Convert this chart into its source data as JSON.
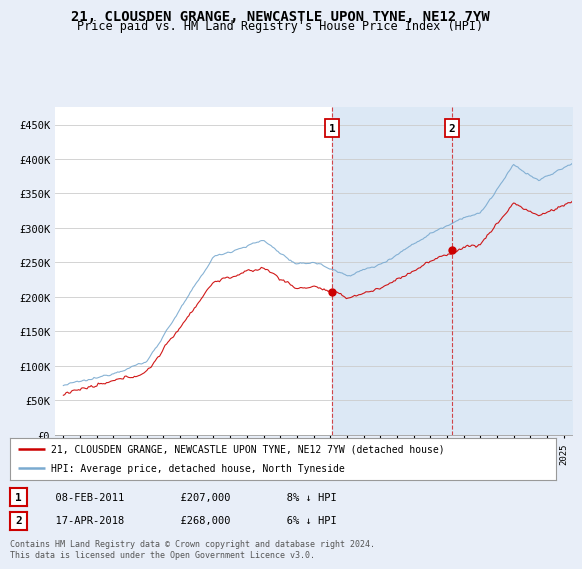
{
  "title": "21, CLOUSDEN GRANGE, NEWCASTLE UPON TYNE, NE12 7YW",
  "subtitle": "Price paid vs. HM Land Registry's House Price Index (HPI)",
  "title_fontsize": 10,
  "subtitle_fontsize": 8.5,
  "ylabel_ticks": [
    "£0",
    "£50K",
    "£100K",
    "£150K",
    "£200K",
    "£250K",
    "£300K",
    "£350K",
    "£400K",
    "£450K"
  ],
  "ytick_vals": [
    0,
    50000,
    100000,
    150000,
    200000,
    250000,
    300000,
    350000,
    400000,
    450000
  ],
  "ylim": [
    0,
    475000
  ],
  "xlim_start": 1994.5,
  "xlim_end": 2025.5,
  "background_color": "#e8eef8",
  "plot_bg_color": "#ffffff",
  "shade_color": "#dce8f5",
  "grid_color": "#cccccc",
  "sale_color": "#cc0000",
  "hpi_color": "#7aaad0",
  "sale_label": "21, CLOUSDEN GRANGE, NEWCASTLE UPON TYNE, NE12 7YW (detached house)",
  "hpi_label": "HPI: Average price, detached house, North Tyneside",
  "annotation1": {
    "num": "1",
    "date": "08-FEB-2011",
    "price": "£207,000",
    "pct": "8% ↓ HPI"
  },
  "annotation2": {
    "num": "2",
    "date": "17-APR-2018",
    "price": "£268,000",
    "pct": "6% ↓ HPI"
  },
  "footnote": "Contains HM Land Registry data © Crown copyright and database right 2024.\nThis data is licensed under the Open Government Licence v3.0.",
  "sale_x": 2011.1,
  "sale_y1": 207000,
  "sale_x2": 2018.3,
  "sale_y2": 268000
}
